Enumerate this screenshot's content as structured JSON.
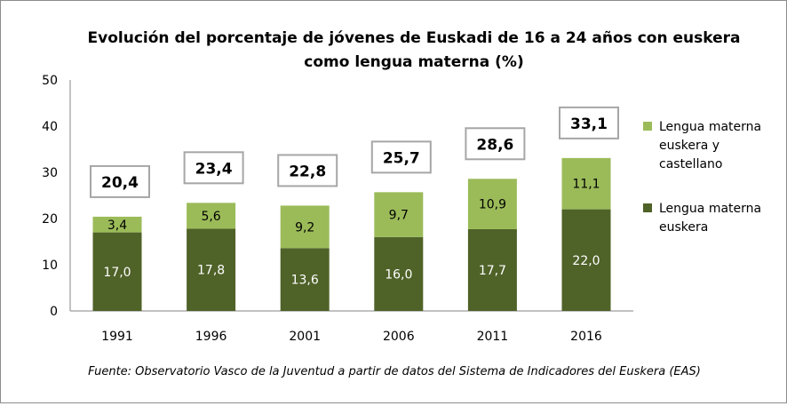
{
  "chart_data": {
    "type": "bar",
    "stacked": true,
    "title": "Evolución del porcentaje de jóvenes de Euskadi de 16 a 24 años con euskera como lengua materna  (%)",
    "title_lines": [
      "Evolución del porcentaje de jóvenes de Euskadi de 16 a 24 años con euskera",
      "como lengua materna  (%)"
    ],
    "categories": [
      "1991",
      "1996",
      "2001",
      "2006",
      "2011",
      "2016"
    ],
    "series": [
      {
        "name": "Lengua materna euskera",
        "legend_lines": [
          "Lengua materna",
          "euskera"
        ],
        "color": "#4f6228",
        "values": [
          17.0,
          17.8,
          13.6,
          16.0,
          17.7,
          22.0
        ],
        "labels": [
          "17,0",
          "17,8",
          "13,6",
          "16,0",
          "17,7",
          "22,0"
        ]
      },
      {
        "name": "Lengua materna euskera y castellano",
        "legend_lines": [
          "Lengua materna",
          "euskera y",
          "castellano"
        ],
        "color": "#9bbb59",
        "values": [
          3.4,
          5.6,
          9.2,
          9.7,
          10.9,
          11.1
        ],
        "labels": [
          "3,4",
          "5,6",
          "9,2",
          "9,7",
          "10,9",
          "11,1"
        ]
      }
    ],
    "totals": [
      "20,4",
      "23,4",
      "22,8",
      "25,7",
      "28,6",
      "33,1"
    ],
    "total_values": [
      20.4,
      23.4,
      22.8,
      25.7,
      28.6,
      33.1
    ],
    "ylim": [
      0,
      50
    ],
    "yticks": [
      "0",
      "10",
      "20",
      "30",
      "40",
      "50"
    ],
    "xlabel": "",
    "ylabel": "",
    "grid": false,
    "legend_position": "right"
  },
  "source": "Fuente: Observatorio Vasco de la Juventud a partir de datos del Sistema de Indicadores del Euskera (EAS)"
}
